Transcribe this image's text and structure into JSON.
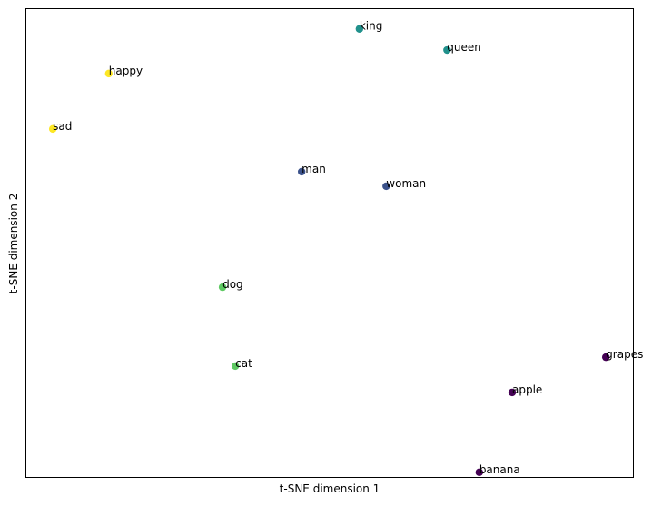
{
  "chart_data": {
    "type": "scatter",
    "title": "",
    "xlabel": "t-SNE dimension 1",
    "ylabel": "t-SNE dimension 2",
    "xlim": [
      0,
      100
    ],
    "ylim": [
      0,
      100
    ],
    "grid": false,
    "ticks_shown": false,
    "colormap": "viridis",
    "points": [
      {
        "label": "king",
        "x": 54.9,
        "y": 95.6,
        "color": "#21918c"
      },
      {
        "label": "queen",
        "x": 69.3,
        "y": 91.1,
        "color": "#21918c"
      },
      {
        "label": "happy",
        "x": 13.7,
        "y": 86.1,
        "color": "#fde725"
      },
      {
        "label": "sad",
        "x": 4.5,
        "y": 74.3,
        "color": "#fde725"
      },
      {
        "label": "man",
        "x": 45.4,
        "y": 65.2,
        "color": "#3b528b"
      },
      {
        "label": "woman",
        "x": 59.3,
        "y": 62.1,
        "color": "#3b528b"
      },
      {
        "label": "dog",
        "x": 32.4,
        "y": 40.6,
        "color": "#5ec962"
      },
      {
        "label": "cat",
        "x": 34.5,
        "y": 23.8,
        "color": "#5ec962"
      },
      {
        "label": "grapes",
        "x": 95.4,
        "y": 25.7,
        "color": "#440154"
      },
      {
        "label": "apple",
        "x": 80.0,
        "y": 18.2,
        "color": "#440154"
      },
      {
        "label": "banana",
        "x": 74.6,
        "y": 1.2,
        "color": "#440154"
      }
    ]
  }
}
